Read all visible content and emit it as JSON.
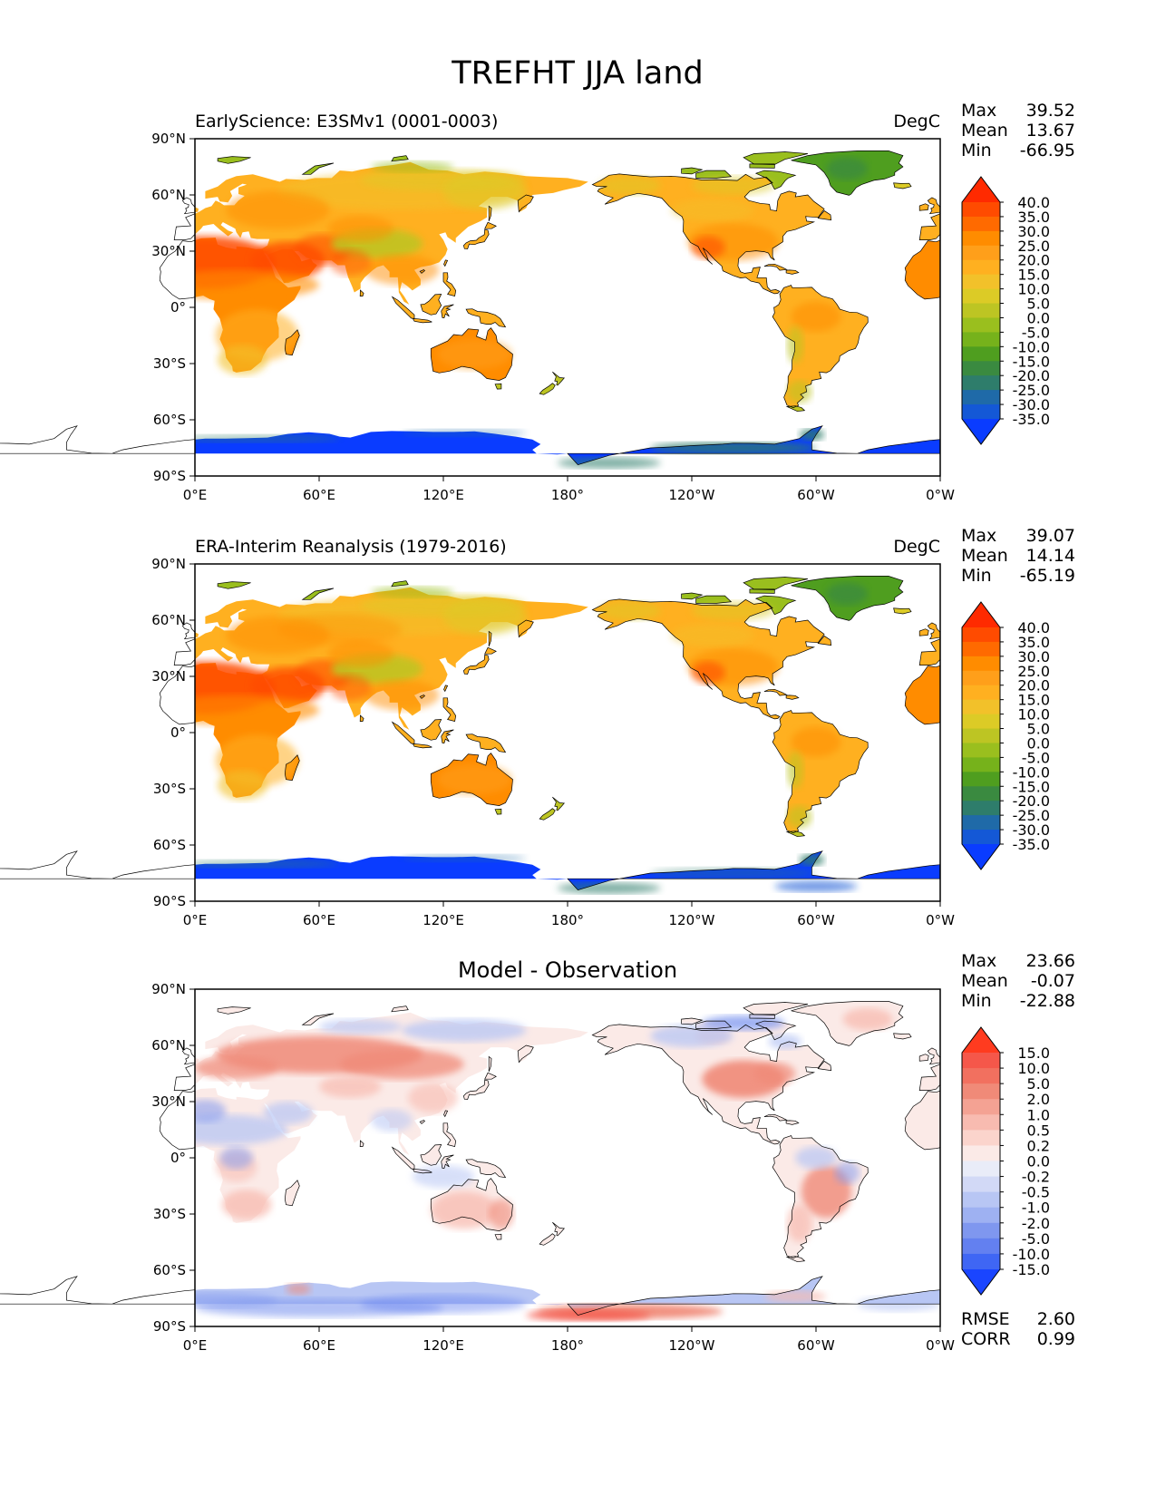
{
  "figure": {
    "title": "TREFHT JJA land",
    "lon_ticks": [
      "0°E",
      "60°E",
      "120°E",
      "180°",
      "120°W",
      "60°W",
      "0°W"
    ],
    "lat_ticks": [
      "90°N",
      "60°N",
      "30°N",
      "0°",
      "30°S",
      "60°S",
      "90°S"
    ]
  },
  "chart_data": [
    {
      "type": "heatmap",
      "title": "EarlyScience: E3SMv1 (0001-0003)",
      "units": "DegC",
      "projection": "cylindrical, centered on 180°",
      "xlim": [
        0,
        360
      ],
      "ylim": [
        -90,
        90
      ],
      "stats": [
        {
          "label": "Max",
          "value": "39.52"
        },
        {
          "label": "Mean",
          "value": "13.67"
        },
        {
          "label": "Min",
          "value": "-66.95"
        }
      ],
      "colorbar": {
        "levels": [
          "40.0",
          "35.0",
          "30.0",
          "25.0",
          "20.0",
          "15.0",
          "10.0",
          "5.0",
          "0.0",
          "-5.0",
          "-10.0",
          "-15.0",
          "-20.0",
          "-25.0",
          "-30.0",
          "-35.0"
        ],
        "colors": [
          "#ff2a00",
          "#ff4b00",
          "#ff6a00",
          "#ff8c00",
          "#ff9f1a",
          "#ffb020",
          "#f2c12a",
          "#dccb26",
          "#bdc523",
          "#9abf1e",
          "#76b21b",
          "#4f9e1f",
          "#3a8a40",
          "#2e7d6b",
          "#1f6aa8",
          "#1458d6",
          "#0a3cff"
        ],
        "extend": "both"
      },
      "field": "summer land temperature: warm deserts (Sahara, Arabia, SW US), temperate mid-latitudes, green Greenland/Arctic, very cold blue Antarctica"
    },
    {
      "type": "heatmap",
      "title": "ERA-Interim Reanalysis (1979-2016)",
      "units": "DegC",
      "projection": "cylindrical, centered on 180°",
      "xlim": [
        0,
        360
      ],
      "ylim": [
        -90,
        90
      ],
      "stats": [
        {
          "label": "Max",
          "value": "39.07"
        },
        {
          "label": "Mean",
          "value": "14.14"
        },
        {
          "label": "Min",
          "value": "-65.19"
        }
      ],
      "colorbar": {
        "levels": [
          "40.0",
          "35.0",
          "30.0",
          "25.0",
          "20.0",
          "15.0",
          "10.0",
          "5.0",
          "0.0",
          "-5.0",
          "-10.0",
          "-15.0",
          "-20.0",
          "-25.0",
          "-30.0",
          "-35.0"
        ],
        "colors": [
          "#ff2a00",
          "#ff4b00",
          "#ff6a00",
          "#ff8c00",
          "#ff9f1a",
          "#ffb020",
          "#f2c12a",
          "#dccb26",
          "#bdc523",
          "#9abf1e",
          "#76b21b",
          "#4f9e1f",
          "#3a8a40",
          "#2e7d6b",
          "#1f6aa8",
          "#1458d6",
          "#0a3cff"
        ],
        "extend": "both"
      },
      "field": "observed summer land temperature with the same broad pattern as the model"
    },
    {
      "type": "heatmap",
      "title": "Model - Observation",
      "units": "",
      "projection": "cylindrical, centered on 180°",
      "xlim": [
        0,
        360
      ],
      "ylim": [
        -90,
        90
      ],
      "stats": [
        {
          "label": "Max",
          "value": "23.66"
        },
        {
          "label": "Mean",
          "value": "-0.07"
        },
        {
          "label": "Min",
          "value": "-22.88"
        }
      ],
      "extra_stats": [
        {
          "label": "RMSE",
          "value": "2.60"
        },
        {
          "label": "CORR",
          "value": "0.99"
        }
      ],
      "colorbar": {
        "levels": [
          "15.0",
          "10.0",
          "5.0",
          "2.0",
          "1.0",
          "0.5",
          "0.2",
          "0.0",
          "-0.2",
          "-0.5",
          "-1.0",
          "-2.0",
          "-5.0",
          "-10.0",
          "-15.0"
        ],
        "colors": [
          "#ff3b1f",
          "#f5574a",
          "#f2705f",
          "#f08a78",
          "#f4a293",
          "#f8bbb0",
          "#fbd4cc",
          "#fbeae7",
          "#e9ecf8",
          "#d2d9f6",
          "#b8c6f4",
          "#9eb1f2",
          "#7f97ef",
          "#6380f0",
          "#3f66f4",
          "#1a45ff"
        ],
        "extend": "both"
      },
      "field": "model minus reanalysis differences: warm bias over N Eurasia, central N America, W Antarctica; cool bias over Arctic, Sahel, East Antarctica"
    }
  ]
}
